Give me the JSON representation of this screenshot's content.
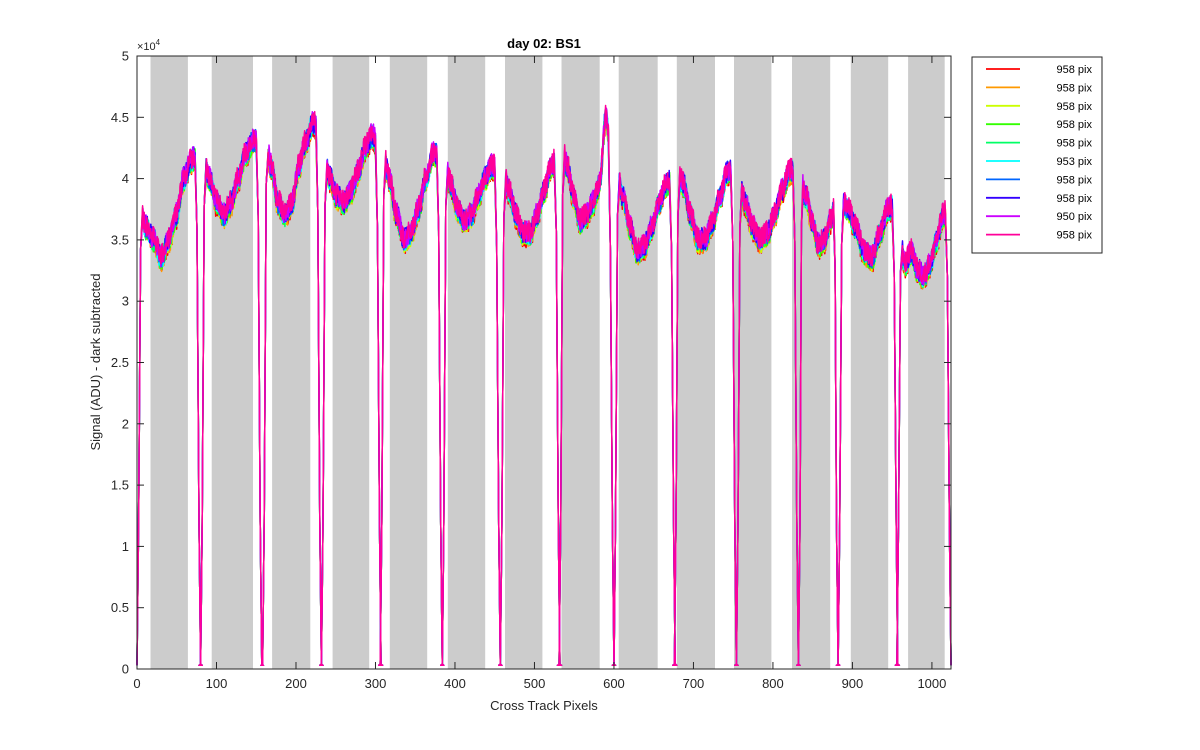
{
  "chart_data": {
    "type": "line",
    "title": "day 02: BS1",
    "xlabel": "Cross Track Pixels",
    "ylabel": "Signal (ADU) - dark subtracted",
    "xlim": [
      0,
      1024
    ],
    "ylim": [
      0,
      50000
    ],
    "y_exponent_label": "×10",
    "y_exponent_power": "4",
    "x_ticks": [
      0,
      100,
      200,
      300,
      400,
      500,
      600,
      700,
      800,
      900,
      1000
    ],
    "x_tick_labels": [
      "0",
      "100",
      "200",
      "300",
      "400",
      "500",
      "600",
      "700",
      "800",
      "900",
      "1000"
    ],
    "y_ticks": [
      0,
      5000,
      10000,
      15000,
      20000,
      25000,
      30000,
      35000,
      40000,
      45000,
      50000
    ],
    "y_tick_labels": [
      "0",
      "0.5",
      "1",
      "1.5",
      "2",
      "2.5",
      "3",
      "3.5",
      "4",
      "4.5",
      "5"
    ],
    "grid": false,
    "legend_position": "outside-top-right",
    "shaded_regions": [
      [
        17,
        64
      ],
      [
        94,
        146
      ],
      [
        170,
        218
      ],
      [
        246,
        292
      ],
      [
        318,
        365
      ],
      [
        391,
        438
      ],
      [
        463,
        510
      ],
      [
        534,
        582
      ],
      [
        606,
        655
      ],
      [
        679,
        727
      ],
      [
        751,
        798
      ],
      [
        824,
        872
      ],
      [
        898,
        945
      ],
      [
        970,
        1016
      ]
    ],
    "segments": [
      {
        "x0": 2,
        "x1": 78,
        "profile": [
          38000,
          36000,
          35000,
          33500,
          35000,
          37000,
          40000,
          41500,
          42000
        ]
      },
      {
        "x0": 82,
        "x1": 155,
        "profile": [
          42000,
          40000,
          38000,
          37000,
          38000,
          40000,
          42000,
          43000,
          43500
        ]
      },
      {
        "x0": 160,
        "x1": 230,
        "profile": [
          44000,
          41000,
          38000,
          37000,
          38000,
          41000,
          43000,
          44500,
          44000
        ]
      },
      {
        "x0": 234,
        "x1": 305,
        "profile": [
          42000,
          40000,
          38500,
          38000,
          39000,
          40500,
          42500,
          43500,
          42000
        ]
      },
      {
        "x0": 308,
        "x1": 382,
        "profile": [
          43000,
          40000,
          37000,
          35000,
          35500,
          37500,
          40000,
          42000,
          42000
        ]
      },
      {
        "x0": 386,
        "x1": 455,
        "profile": [
          42000,
          39500,
          37500,
          36500,
          37000,
          38500,
          40000,
          41000,
          40500
        ]
      },
      {
        "x0": 459,
        "x1": 530,
        "profile": [
          41000,
          39000,
          37000,
          35500,
          35500,
          37000,
          39000,
          41000,
          42000
        ]
      },
      {
        "x0": 533,
        "x1": 598,
        "profile": [
          43000,
          41000,
          38500,
          36500,
          37000,
          38000,
          39500,
          45000,
          40000
        ]
      },
      {
        "x0": 602,
        "x1": 675,
        "profile": [
          41000,
          38500,
          36000,
          34000,
          34500,
          36000,
          38000,
          39500,
          40000
        ]
      },
      {
        "x0": 678,
        "x1": 752,
        "profile": [
          41000,
          39500,
          37000,
          35000,
          35000,
          36500,
          38500,
          40500,
          41000
        ]
      },
      {
        "x0": 756,
        "x1": 830,
        "profile": [
          40000,
          38000,
          36000,
          35000,
          35500,
          37000,
          39000,
          40500,
          41000
        ]
      },
      {
        "x0": 834,
        "x1": 880,
        "profile": [
          40000,
          38500,
          36500,
          34500,
          35000,
          36500,
          38500
        ]
      },
      {
        "x0": 884,
        "x1": 955,
        "profile": [
          38500,
          37500,
          36000,
          34000,
          33500,
          35500,
          37500,
          38000
        ]
      },
      {
        "x0": 958,
        "x1": 1022,
        "profile": [
          36000,
          33000,
          34000,
          32500,
          32000,
          33000,
          35000,
          37000,
          37500
        ]
      }
    ],
    "series": [
      {
        "name": "958 pix",
        "color": "#ff0000"
      },
      {
        "name": "958 pix",
        "color": "#ff9900"
      },
      {
        "name": "958 pix",
        "color": "#ccff00"
      },
      {
        "name": "958 pix",
        "color": "#33ff00"
      },
      {
        "name": "958 pix",
        "color": "#00ff66"
      },
      {
        "name": "953 pix",
        "color": "#00ffff"
      },
      {
        "name": "958 pix",
        "color": "#0066ff"
      },
      {
        "name": "958 pix",
        "color": "#3300ff"
      },
      {
        "name": "950 pix",
        "color": "#cc00ff"
      },
      {
        "name": "958 pix",
        "color": "#ff0099"
      }
    ]
  }
}
